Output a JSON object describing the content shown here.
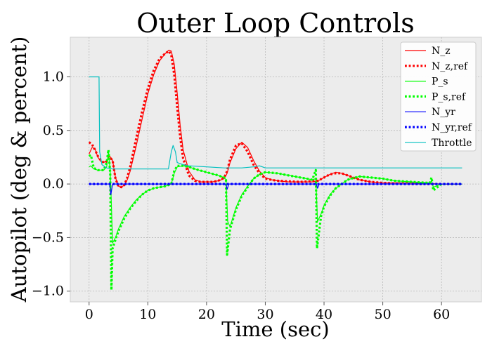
{
  "chart_data": {
    "type": "line",
    "title": "Outer Loop Controls",
    "xlabel": "Time (sec)",
    "ylabel": "Autopilot (deg & percent)",
    "xlim": [
      -3.2,
      66.8
    ],
    "ylim": [
      -1.1,
      1.37
    ],
    "xticks": [
      0,
      10,
      20,
      30,
      40,
      50,
      60
    ],
    "yticks": [
      -1.0,
      -0.5,
      0.0,
      0.5,
      1.0
    ],
    "xtick_labels": [
      "0",
      "10",
      "20",
      "30",
      "40",
      "50",
      "60"
    ],
    "ytick_labels": [
      "−1.0",
      "−0.5",
      "0.0",
      "0.5",
      "1.0"
    ],
    "grid": true,
    "legend_position": "top-right",
    "background": "#ececec",
    "series": [
      {
        "name": "N_z",
        "color": "#ff0000",
        "style": "solid",
        "points": [
          [
            0,
            0.28
          ],
          [
            0.5,
            0.34
          ],
          [
            1,
            0.33
          ],
          [
            1.5,
            0.25
          ],
          [
            2,
            0.21
          ],
          [
            2.5,
            0.2
          ],
          [
            3,
            0.22
          ],
          [
            3.5,
            0.26
          ],
          [
            4,
            0.22
          ],
          [
            4.5,
            0.06
          ],
          [
            5,
            -0.02
          ],
          [
            5.5,
            -0.03
          ],
          [
            6,
            -0.01
          ],
          [
            6.5,
            0.04
          ],
          [
            7,
            0.12
          ],
          [
            8,
            0.35
          ],
          [
            9,
            0.6
          ],
          [
            10,
            0.84
          ],
          [
            11,
            1.02
          ],
          [
            12,
            1.15
          ],
          [
            13,
            1.22
          ],
          [
            13.6,
            1.25
          ],
          [
            14,
            1.24
          ],
          [
            14.5,
            1.12
          ],
          [
            15,
            0.85
          ],
          [
            15.5,
            0.55
          ],
          [
            16,
            0.32
          ],
          [
            17,
            0.12
          ],
          [
            18,
            0.04
          ],
          [
            19,
            0.02
          ],
          [
            20,
            0.02
          ],
          [
            21,
            0.02
          ],
          [
            22,
            0.03
          ],
          [
            23,
            0.05
          ],
          [
            23.5,
            0.1
          ],
          [
            24,
            0.2
          ],
          [
            25,
            0.33
          ],
          [
            26,
            0.39
          ],
          [
            27,
            0.34
          ],
          [
            28,
            0.22
          ],
          [
            29,
            0.12
          ],
          [
            30,
            0.06
          ],
          [
            31,
            0.04
          ],
          [
            32,
            0.03
          ],
          [
            34,
            0.02
          ],
          [
            36,
            0.02
          ],
          [
            38,
            0.02
          ],
          [
            39,
            0.03
          ],
          [
            40,
            0.06
          ],
          [
            41,
            0.09
          ],
          [
            42,
            0.11
          ],
          [
            43,
            0.1
          ],
          [
            44,
            0.08
          ],
          [
            45,
            0.06
          ],
          [
            46,
            0.04
          ],
          [
            48,
            0.02
          ],
          [
            50,
            0.01
          ],
          [
            55,
            0.01
          ],
          [
            60,
            0.0
          ],
          [
            63.5,
            0.0
          ]
        ]
      },
      {
        "name": "N_z,ref",
        "color": "#ff0000",
        "style": "dotted",
        "points": [
          [
            0,
            0.39
          ],
          [
            0.5,
            0.37
          ],
          [
            1,
            0.32
          ],
          [
            1.5,
            0.26
          ],
          [
            2,
            0.22
          ],
          [
            2.5,
            0.2
          ],
          [
            3,
            0.21
          ],
          [
            3.5,
            0.25
          ],
          [
            4,
            0.22
          ],
          [
            4.5,
            0.05
          ],
          [
            5,
            -0.02
          ],
          [
            5.5,
            -0.03
          ],
          [
            6,
            -0.01
          ],
          [
            6.5,
            0.06
          ],
          [
            7,
            0.16
          ],
          [
            8,
            0.42
          ],
          [
            9,
            0.67
          ],
          [
            10,
            0.89
          ],
          [
            11,
            1.06
          ],
          [
            12,
            1.17
          ],
          [
            13,
            1.22
          ],
          [
            13.6,
            1.24
          ],
          [
            14,
            1.2
          ],
          [
            14.5,
            1.02
          ],
          [
            15,
            0.72
          ],
          [
            15.5,
            0.44
          ],
          [
            16,
            0.24
          ],
          [
            17,
            0.08
          ],
          [
            18,
            0.03
          ],
          [
            19,
            0.02
          ],
          [
            20,
            0.02
          ],
          [
            21,
            0.02
          ],
          [
            22,
            0.03
          ],
          [
            23,
            0.06
          ],
          [
            23.5,
            0.12
          ],
          [
            24,
            0.23
          ],
          [
            25,
            0.36
          ],
          [
            26,
            0.38
          ],
          [
            27,
            0.3
          ],
          [
            28,
            0.18
          ],
          [
            29,
            0.1
          ],
          [
            30,
            0.05
          ],
          [
            32,
            0.03
          ],
          [
            36,
            0.02
          ],
          [
            39,
            0.03
          ],
          [
            40,
            0.06
          ],
          [
            41,
            0.09
          ],
          [
            42,
            0.1
          ],
          [
            43,
            0.1
          ],
          [
            44,
            0.08
          ],
          [
            46,
            0.04
          ],
          [
            48,
            0.02
          ],
          [
            50,
            0.01
          ],
          [
            55,
            0.0
          ],
          [
            60,
            0.0
          ],
          [
            63.5,
            0.0
          ]
        ]
      },
      {
        "name": "P_s",
        "color": "#00ff00",
        "style": "solid",
        "points": [
          [
            0,
            0.16
          ],
          [
            0.3,
            0.17
          ],
          [
            0.8,
            0.14
          ],
          [
            1.5,
            0.13
          ],
          [
            2.5,
            0.13
          ],
          [
            3,
            0.16
          ],
          [
            3.3,
            0.3
          ],
          [
            3.6,
            0.12
          ],
          [
            3.8,
            -0.2
          ],
          [
            4,
            -0.55
          ],
          [
            4.5,
            -0.5
          ],
          [
            5,
            -0.42
          ],
          [
            6,
            -0.3
          ],
          [
            7,
            -0.22
          ],
          [
            8,
            -0.15
          ],
          [
            9,
            -0.1
          ],
          [
            10,
            -0.06
          ],
          [
            11,
            -0.04
          ],
          [
            12,
            -0.03
          ],
          [
            13,
            -0.02
          ],
          [
            14,
            0.0
          ],
          [
            14.5,
            0.1
          ],
          [
            15,
            0.16
          ],
          [
            16,
            0.17
          ],
          [
            17,
            0.16
          ],
          [
            18,
            0.14
          ],
          [
            20,
            0.11
          ],
          [
            22,
            0.08
          ],
          [
            23,
            0.06
          ],
          [
            23.3,
            0.04
          ],
          [
            23.6,
            -0.35
          ],
          [
            24,
            -0.4
          ],
          [
            25,
            -0.22
          ],
          [
            26,
            -0.1
          ],
          [
            27,
            -0.02
          ],
          [
            28,
            0.05
          ],
          [
            29,
            0.09
          ],
          [
            30,
            0.11
          ],
          [
            32,
            0.1
          ],
          [
            34,
            0.08
          ],
          [
            36,
            0.06
          ],
          [
            38,
            0.04
          ],
          [
            38.6,
            0.05
          ],
          [
            38.9,
            -0.35
          ],
          [
            39.5,
            -0.28
          ],
          [
            40,
            -0.2
          ],
          [
            41,
            -0.1
          ],
          [
            42,
            -0.04
          ],
          [
            43,
            0.0
          ],
          [
            44,
            0.04
          ],
          [
            46,
            0.07
          ],
          [
            48,
            0.06
          ],
          [
            50,
            0.05
          ],
          [
            52,
            0.03
          ],
          [
            55,
            0.02
          ],
          [
            58,
            0.01
          ],
          [
            58.3,
            0.03
          ],
          [
            58.6,
            -0.03
          ],
          [
            60,
            0.0
          ],
          [
            63.5,
            0.0
          ]
        ]
      },
      {
        "name": "P_s,ref",
        "color": "#00ff00",
        "style": "dotted",
        "points": [
          [
            0,
            0.26
          ],
          [
            0.3,
            0.27
          ],
          [
            0.8,
            0.15
          ],
          [
            1.5,
            0.13
          ],
          [
            2.5,
            0.13
          ],
          [
            3,
            0.2
          ],
          [
            3.3,
            0.32
          ],
          [
            3.6,
            0.1
          ],
          [
            3.8,
            -0.99
          ],
          [
            4,
            -0.6
          ],
          [
            4.5,
            -0.52
          ],
          [
            5,
            -0.44
          ],
          [
            6,
            -0.32
          ],
          [
            7,
            -0.23
          ],
          [
            8,
            -0.16
          ],
          [
            9,
            -0.1
          ],
          [
            10,
            -0.06
          ],
          [
            11,
            -0.04
          ],
          [
            12,
            -0.03
          ],
          [
            13,
            -0.02
          ],
          [
            14,
            0.0
          ],
          [
            14.5,
            0.12
          ],
          [
            15,
            0.17
          ],
          [
            16,
            0.17
          ],
          [
            17,
            0.16
          ],
          [
            18,
            0.14
          ],
          [
            20,
            0.11
          ],
          [
            22,
            0.08
          ],
          [
            23,
            0.06
          ],
          [
            23.3,
            0.04
          ],
          [
            23.5,
            -0.66
          ],
          [
            24,
            -0.42
          ],
          [
            25,
            -0.24
          ],
          [
            26,
            -0.11
          ],
          [
            27,
            -0.03
          ],
          [
            28,
            0.05
          ],
          [
            29,
            0.09
          ],
          [
            30,
            0.11
          ],
          [
            32,
            0.1
          ],
          [
            34,
            0.08
          ],
          [
            36,
            0.06
          ],
          [
            38,
            0.04
          ],
          [
            38.6,
            0.13
          ],
          [
            38.8,
            -0.6
          ],
          [
            39.5,
            -0.3
          ],
          [
            40,
            -0.21
          ],
          [
            41,
            -0.11
          ],
          [
            42,
            -0.04
          ],
          [
            43,
            0.0
          ],
          [
            44,
            0.04
          ],
          [
            46,
            0.07
          ],
          [
            48,
            0.06
          ],
          [
            50,
            0.05
          ],
          [
            52,
            0.03
          ],
          [
            55,
            0.02
          ],
          [
            58,
            0.01
          ],
          [
            58.3,
            0.06
          ],
          [
            58.6,
            -0.06
          ],
          [
            60,
            0.0
          ],
          [
            63.5,
            0.0
          ]
        ]
      },
      {
        "name": "N_yr",
        "color": "#0000ff",
        "style": "solid",
        "points": [
          [
            0,
            0.0
          ],
          [
            2,
            0.0
          ],
          [
            3.5,
            0.0
          ],
          [
            3.7,
            -0.1
          ],
          [
            4,
            0.0
          ],
          [
            10,
            0.0
          ],
          [
            20,
            0.0
          ],
          [
            23.3,
            0.0
          ],
          [
            23.5,
            -0.05
          ],
          [
            23.8,
            0.0
          ],
          [
            30,
            0.0
          ],
          [
            38.7,
            0.0
          ],
          [
            38.9,
            -0.04
          ],
          [
            39.2,
            0.0
          ],
          [
            50,
            0.0
          ],
          [
            63.5,
            0.0
          ]
        ]
      },
      {
        "name": "N_yr,ref",
        "color": "#0000ff",
        "style": "dotted",
        "points": [
          [
            0,
            0.0
          ],
          [
            10,
            0.0
          ],
          [
            20,
            0.0
          ],
          [
            30,
            0.0
          ],
          [
            40,
            0.0
          ],
          [
            50,
            0.0
          ],
          [
            63.5,
            0.0
          ]
        ]
      },
      {
        "name": "Throttle",
        "color": "#00bfbf",
        "style": "solid",
        "points": [
          [
            0,
            1.0
          ],
          [
            1.7,
            1.0
          ],
          [
            1.8,
            0.3
          ],
          [
            2.2,
            0.18
          ],
          [
            3,
            0.15
          ],
          [
            4,
            0.14
          ],
          [
            6,
            0.14
          ],
          [
            10,
            0.14
          ],
          [
            13.5,
            0.14
          ],
          [
            14,
            0.3
          ],
          [
            14.3,
            0.36
          ],
          [
            14.7,
            0.3
          ],
          [
            15,
            0.2
          ],
          [
            16,
            0.18
          ],
          [
            17,
            0.17
          ],
          [
            20,
            0.16
          ],
          [
            23,
            0.15
          ],
          [
            26,
            0.15
          ],
          [
            28,
            0.16
          ],
          [
            29,
            0.17
          ],
          [
            30,
            0.15
          ],
          [
            32,
            0.15
          ],
          [
            36,
            0.15
          ],
          [
            40,
            0.15
          ],
          [
            50,
            0.15
          ],
          [
            60,
            0.15
          ],
          [
            63.5,
            0.15
          ]
        ]
      }
    ]
  }
}
